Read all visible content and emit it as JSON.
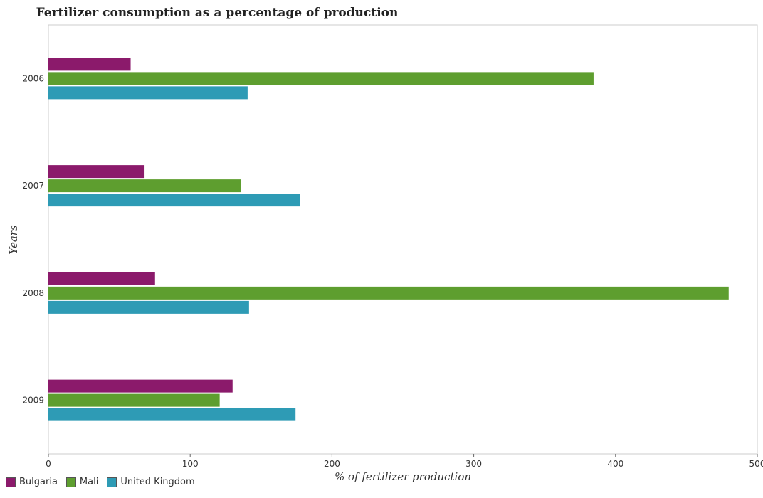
{
  "chart_data": {
    "type": "bar",
    "orientation": "horizontal",
    "title": "Fertilizer consumption as a percentage of production",
    "xlabel": "% of fertilizer production",
    "ylabel": "Years",
    "categories": [
      "2006",
      "2007",
      "2008",
      "2009"
    ],
    "series": [
      {
        "name": "Bulgaria",
        "color": "#8B1A6B",
        "values": [
          58.0,
          67.8,
          75.2,
          129.9
        ]
      },
      {
        "name": "Mali",
        "color": "#5E9E2F",
        "values": [
          384.5,
          135.7,
          479.8,
          120.8
        ]
      },
      {
        "name": "United Kingdom",
        "color": "#2E9BB5",
        "values": [
          140.5,
          177.6,
          141.5,
          174.3
        ]
      }
    ],
    "xlim": [
      0,
      500
    ],
    "xticks": [
      0,
      100,
      200,
      300,
      400,
      500
    ],
    "grid": false,
    "legend_position": "bottom-left"
  }
}
